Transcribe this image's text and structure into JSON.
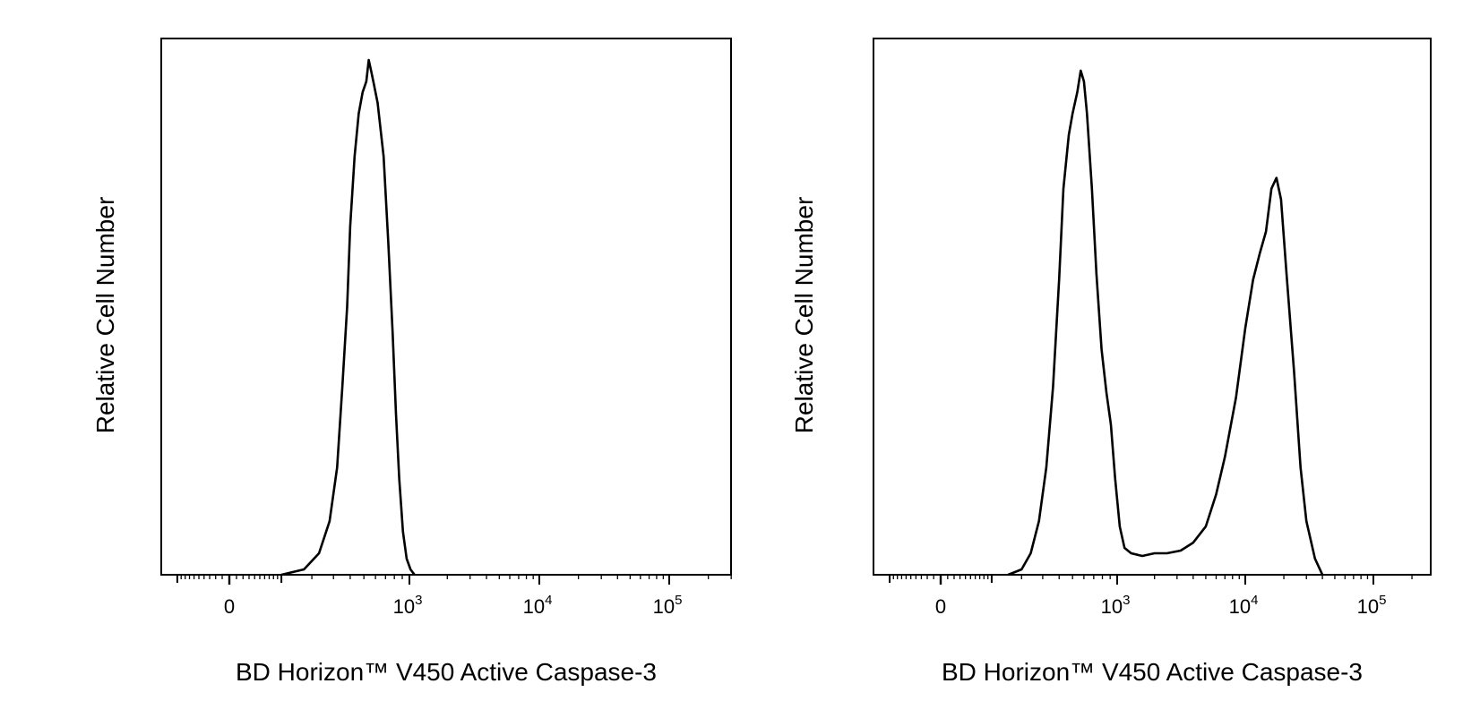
{
  "chart_data": [
    {
      "type": "line",
      "title": "",
      "xlabel": "BD Horizon™ V450 Active Caspase-3",
      "ylabel": "Relative Cell Number",
      "x_scale": "biexponential",
      "xlim": [
        -300,
        250000
      ],
      "ylim": [
        0,
        1
      ],
      "grid": false,
      "x_ticks": [
        {
          "value": 0,
          "base": "0",
          "exp": ""
        },
        {
          "value": 1000,
          "base": "10",
          "exp": "3"
        },
        {
          "value": 10000,
          "base": "10",
          "exp": "4"
        },
        {
          "value": 100000,
          "base": "10",
          "exp": "5"
        }
      ],
      "series": [
        {
          "points": [
            [
              100,
              0.0
            ],
            [
              170,
              0.01
            ],
            [
              230,
              0.04
            ],
            [
              280,
              0.1
            ],
            [
              320,
              0.2
            ],
            [
              350,
              0.35
            ],
            [
              380,
              0.5
            ],
            [
              400,
              0.65
            ],
            [
              430,
              0.78
            ],
            [
              460,
              0.86
            ],
            [
              490,
              0.9
            ],
            [
              520,
              0.92
            ],
            [
              540,
              0.96
            ],
            [
              560,
              0.94
            ],
            [
              580,
              0.92
            ],
            [
              620,
              0.88
            ],
            [
              680,
              0.78
            ],
            [
              730,
              0.62
            ],
            [
              780,
              0.45
            ],
            [
              820,
              0.3
            ],
            [
              860,
              0.18
            ],
            [
              910,
              0.08
            ],
            [
              960,
              0.03
            ],
            [
              1020,
              0.01
            ],
            [
              1100,
              0.0
            ]
          ]
        }
      ]
    },
    {
      "type": "line",
      "title": "",
      "xlabel": "BD Horizon™ V450 Active Caspase-3",
      "ylabel": "Relative Cell Number",
      "x_scale": "biexponential",
      "xlim": [
        -300,
        250000
      ],
      "ylim": [
        0,
        1
      ],
      "grid": false,
      "x_ticks": [
        {
          "value": 0,
          "base": "0",
          "exp": ""
        },
        {
          "value": 1000,
          "base": "10",
          "exp": "3"
        },
        {
          "value": 10000,
          "base": "10",
          "exp": "4"
        },
        {
          "value": 100000,
          "base": "10",
          "exp": "5"
        }
      ],
      "series": [
        {
          "points": [
            [
              150,
              0.0
            ],
            [
              200,
              0.01
            ],
            [
              240,
              0.04
            ],
            [
              280,
              0.1
            ],
            [
              320,
              0.2
            ],
            [
              360,
              0.35
            ],
            [
              400,
              0.55
            ],
            [
              430,
              0.72
            ],
            [
              470,
              0.82
            ],
            [
              500,
              0.86
            ],
            [
              540,
              0.9
            ],
            [
              570,
              0.94
            ],
            [
              600,
              0.92
            ],
            [
              630,
              0.86
            ],
            [
              680,
              0.72
            ],
            [
              730,
              0.56
            ],
            [
              790,
              0.42
            ],
            [
              850,
              0.34
            ],
            [
              910,
              0.28
            ],
            [
              970,
              0.18
            ],
            [
              1050,
              0.09
            ],
            [
              1150,
              0.05
            ],
            [
              1300,
              0.04
            ],
            [
              1600,
              0.035
            ],
            [
              2000,
              0.04
            ],
            [
              2500,
              0.04
            ],
            [
              3200,
              0.045
            ],
            [
              4000,
              0.06
            ],
            [
              5000,
              0.09
            ],
            [
              6000,
              0.15
            ],
            [
              7000,
              0.22
            ],
            [
              8500,
              0.33
            ],
            [
              10000,
              0.46
            ],
            [
              11500,
              0.55
            ],
            [
              13000,
              0.6
            ],
            [
              14500,
              0.64
            ],
            [
              16000,
              0.72
            ],
            [
              17500,
              0.74
            ],
            [
              19000,
              0.7
            ],
            [
              21000,
              0.56
            ],
            [
              24000,
              0.38
            ],
            [
              27000,
              0.2
            ],
            [
              30000,
              0.1
            ],
            [
              35000,
              0.03
            ],
            [
              40000,
              0.0
            ]
          ]
        }
      ]
    }
  ]
}
